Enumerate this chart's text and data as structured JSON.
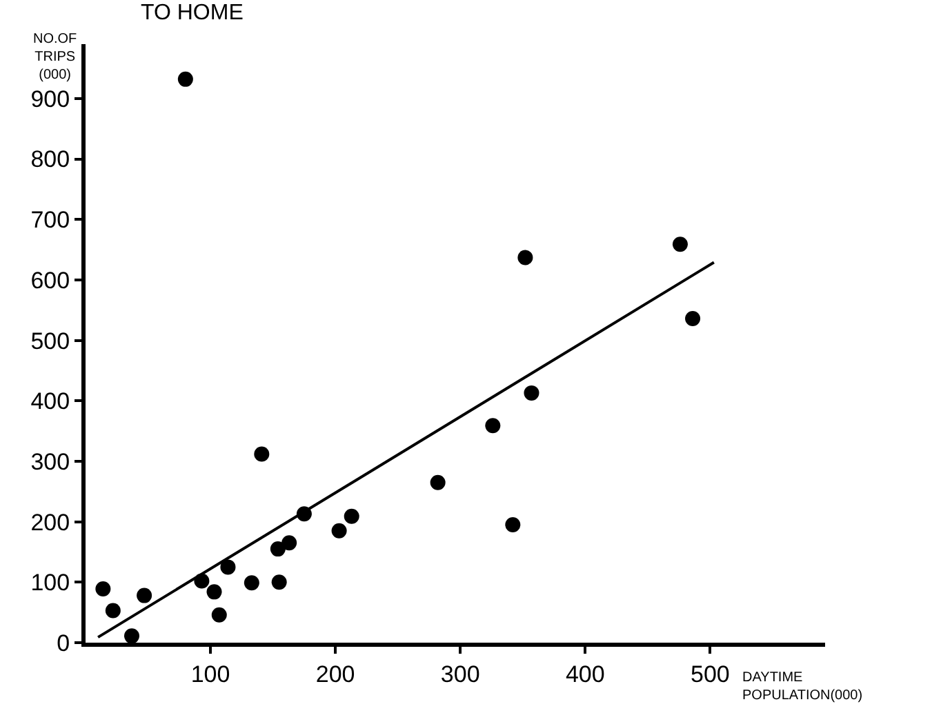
{
  "chart_data": {
    "type": "scatter",
    "title": "TO HOME",
    "xlabel": "DAYTIME\nPOPULATION(000)",
    "ylabel": "NO.OF\nTRIPS\n(000)",
    "xlim": [
      0,
      592
    ],
    "ylim": [
      0,
      990
    ],
    "xticks": [
      100,
      200,
      300,
      400,
      500
    ],
    "yticks": [
      0,
      100,
      200,
      300,
      400,
      500,
      600,
      700,
      800,
      900
    ],
    "tick_labels": true,
    "series": [
      {
        "marker": "circle",
        "color": "#000000",
        "x": [
          14,
          22,
          37,
          47,
          80,
          93,
          103,
          107,
          114,
          133,
          141,
          154,
          155,
          163,
          175,
          203,
          213,
          282,
          326,
          342,
          352,
          357,
          476,
          486
        ],
        "values": [
          89,
          53,
          11,
          78,
          932,
          102,
          84,
          46,
          125,
          99,
          312,
          155,
          100,
          165,
          213,
          185,
          209,
          265,
          359,
          195,
          637,
          413,
          659,
          536
        ]
      },
      {
        "type": "line",
        "color": "#000000",
        "line_style": "solid",
        "x": [
          10,
          503
        ],
        "values": [
          9,
          629
        ]
      }
    ]
  }
}
